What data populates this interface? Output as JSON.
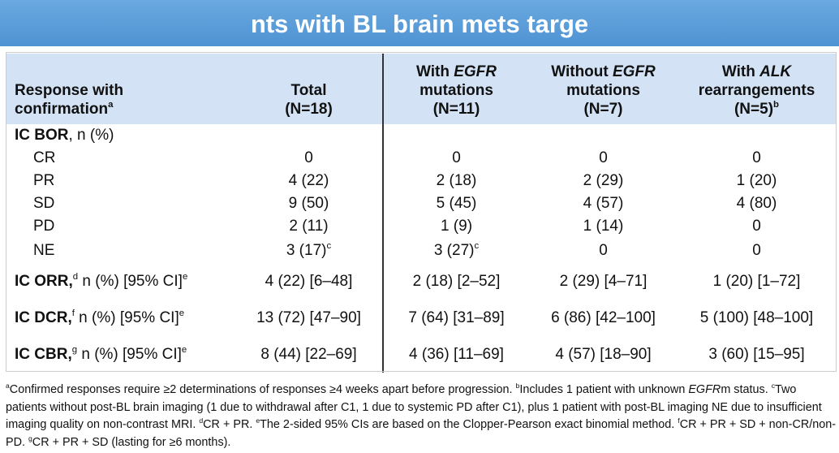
{
  "title": "nts with BL brain mets targe",
  "header": [
    [
      [
        {
          "t": "Response with"
        }
      ],
      [
        {
          "t": "confirmation"
        },
        {
          "sup": "a"
        }
      ]
    ],
    [
      [
        {
          "t": "Total"
        }
      ],
      [
        {
          "t": "(N=18)"
        }
      ]
    ],
    [
      [
        {
          "t": "With "
        },
        {
          "i": "EGFR"
        }
      ],
      [
        {
          "t": "mutations"
        }
      ],
      [
        {
          "t": "(N=11)"
        }
      ]
    ],
    [
      [
        {
          "t": "Without "
        },
        {
          "i": "EGFR"
        }
      ],
      [
        {
          "t": "mutations"
        }
      ],
      [
        {
          "t": "(N=7)"
        }
      ]
    ],
    [
      [
        {
          "t": "With "
        },
        {
          "i": "ALK"
        }
      ],
      [
        {
          "t": "rearrangements"
        }
      ],
      [
        {
          "t": "(N=5)"
        },
        {
          "sup": "b"
        }
      ]
    ]
  ],
  "groups": [
    {
      "label": [
        {
          "b": "IC BOR"
        },
        {
          "t": ", n (%)"
        }
      ],
      "rows": [
        {
          "label": "CR",
          "values": [
            [
              {
                "t": "0"
              }
            ],
            [
              {
                "t": "0"
              }
            ],
            [
              {
                "t": "0"
              }
            ],
            [
              {
                "t": "0"
              }
            ]
          ]
        },
        {
          "label": "PR",
          "values": [
            [
              {
                "t": "4 (22)"
              }
            ],
            [
              {
                "t": "2 (18)"
              }
            ],
            [
              {
                "t": "2 (29)"
              }
            ],
            [
              {
                "t": "1 (20)"
              }
            ]
          ]
        },
        {
          "label": "SD",
          "values": [
            [
              {
                "t": "9 (50)"
              }
            ],
            [
              {
                "t": "5 (45)"
              }
            ],
            [
              {
                "t": "4 (57)"
              }
            ],
            [
              {
                "t": "4 (80)"
              }
            ]
          ]
        },
        {
          "label": "PD",
          "values": [
            [
              {
                "t": "2 (11)"
              }
            ],
            [
              {
                "t": "1 (9)"
              }
            ],
            [
              {
                "t": "1 (14)"
              }
            ],
            [
              {
                "t": "0"
              }
            ]
          ]
        },
        {
          "label": "NE",
          "values": [
            [
              {
                "t": "3 (17)"
              },
              {
                "sup": "c"
              }
            ],
            [
              {
                "t": "3 (27)"
              },
              {
                "sup": "c"
              }
            ],
            [
              {
                "t": "0"
              }
            ],
            [
              {
                "t": "0"
              }
            ]
          ]
        }
      ]
    },
    {
      "label": [
        {
          "b": "IC ORR,"
        },
        {
          "sup": "d"
        },
        {
          "t": " n (%) [95% CI]"
        },
        {
          "sup": "e"
        }
      ],
      "values": [
        [
          {
            "t": "4 (22) [6–48]"
          }
        ],
        [
          {
            "t": "2 (18) [2–52]"
          }
        ],
        [
          {
            "t": "2 (29) [4–71]"
          }
        ],
        [
          {
            "t": "1 (20) [1–72]"
          }
        ]
      ]
    },
    {
      "label": [
        {
          "b": "IC DCR,"
        },
        {
          "sup": "f"
        },
        {
          "t": " n (%)  [95% CI]"
        },
        {
          "sup": "e"
        }
      ],
      "values": [
        [
          {
            "t": "13 (72) [47–90]"
          }
        ],
        [
          {
            "t": "7 (64) [31–89]"
          }
        ],
        [
          {
            "t": "6 (86) [42–100]"
          }
        ],
        [
          {
            "t": "5 (100) [48–100]"
          }
        ]
      ]
    },
    {
      "label": [
        {
          "b": "IC CBR,"
        },
        {
          "sup": "g"
        },
        {
          "t": " n (%) [95% CI]"
        },
        {
          "sup": "e"
        }
      ],
      "values": [
        [
          {
            "t": "8 (44) [22–69]"
          }
        ],
        [
          {
            "t": "4 (36) [11–69]"
          }
        ],
        [
          {
            "t": "4 (57) [18–90]"
          }
        ],
        [
          {
            "t": "3 (60) [15–95]"
          }
        ]
      ]
    }
  ],
  "footnotes": [
    {
      "sup": "a"
    },
    {
      "t": "Confirmed responses require ≥2 determinations of responses ≥4 weeks apart before progression. "
    },
    {
      "sup": "b"
    },
    {
      "t": "Includes 1 patient with unknown "
    },
    {
      "i": "EGFR"
    },
    {
      "t": "m status. "
    },
    {
      "sup": "c"
    },
    {
      "t": "Two patients without post-BL brain imaging (1 due to withdrawal after C1, 1 due to systemic PD after C1), plus 1 patient with post-BL imaging NE due to insufficient imaging quality on non-contrast MRI. "
    },
    {
      "sup": "d"
    },
    {
      "t": "CR + PR. "
    },
    {
      "sup": "e"
    },
    {
      "t": "The 2-sided 95% CIs are based on the Clopper-Pearson exact binomial method. "
    },
    {
      "sup": "f"
    },
    {
      "t": "CR + PR + SD + non-CR/non-PD. "
    },
    {
      "sup": "g"
    },
    {
      "t": "CR + PR + SD (lasting for ≥6 months)."
    }
  ]
}
